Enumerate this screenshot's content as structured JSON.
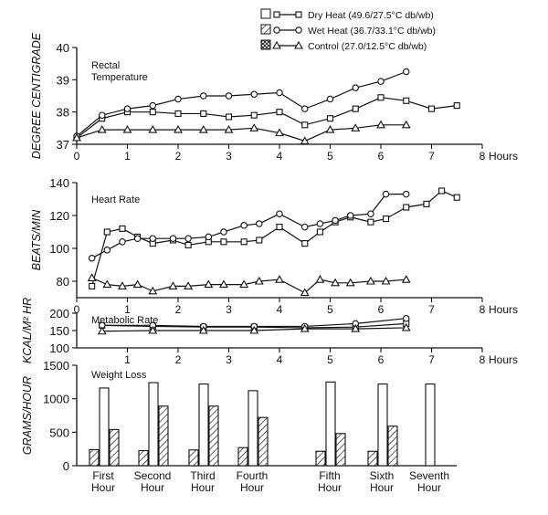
{
  "legend": {
    "entries": [
      {
        "label": "Dry Heat (49.6/27.5°C db/wb)",
        "marker": "square",
        "box": "open"
      },
      {
        "label": "Wet Heat (36.7/33.1°C db/wb)",
        "marker": "circle",
        "box": "hatched"
      },
      {
        "label": "Control (27.0/12.5°C db/wb)",
        "marker": "triangle",
        "box": "cross-hatched"
      }
    ]
  },
  "chart_data": [
    {
      "type": "line",
      "title": "Rectal Temperature",
      "ylabel": "DEGREE CENTIGRADE",
      "xlabel": "Hours",
      "xlim": [
        0,
        8
      ],
      "ylim": [
        37,
        40
      ],
      "xticks": [
        0,
        1,
        2,
        3,
        4,
        5,
        6,
        7,
        8
      ],
      "yticks": [
        37,
        38,
        39,
        40
      ],
      "series": [
        {
          "name": "Dry Heat",
          "marker": "square",
          "x": [
            0,
            0.5,
            1,
            1.5,
            2,
            2.5,
            3,
            3.5,
            4,
            4.5,
            5,
            5.5,
            6,
            6.5,
            7,
            7.5
          ],
          "y": [
            37.2,
            37.8,
            38.0,
            38.0,
            37.95,
            37.95,
            37.85,
            37.9,
            38.0,
            37.6,
            37.8,
            38.1,
            38.45,
            38.35,
            38.1,
            38.2
          ]
        },
        {
          "name": "Wet Heat",
          "marker": "circle",
          "x": [
            0,
            0.5,
            1,
            1.5,
            2,
            2.5,
            3,
            3.5,
            4,
            4.5,
            5,
            5.5,
            6,
            6.5
          ],
          "y": [
            37.25,
            37.9,
            38.1,
            38.2,
            38.4,
            38.5,
            38.5,
            38.55,
            38.6,
            38.1,
            38.4,
            38.75,
            38.95,
            39.25
          ]
        },
        {
          "name": "Control",
          "marker": "triangle",
          "x": [
            0,
            0.5,
            1,
            1.5,
            2,
            2.5,
            3,
            3.5,
            4,
            4.5,
            5,
            5.5,
            6,
            6.5
          ],
          "y": [
            37.2,
            37.45,
            37.45,
            37.45,
            37.45,
            37.45,
            37.45,
            37.5,
            37.35,
            37.1,
            37.45,
            37.5,
            37.6,
            37.6
          ]
        }
      ]
    },
    {
      "type": "line",
      "title": "Heart Rate",
      "ylabel": "BEATS/MIN",
      "xlabel": "Hours",
      "xlim": [
        0,
        8
      ],
      "ylim": [
        70,
        140
      ],
      "xticks": [
        0,
        1,
        2,
        3,
        4,
        5,
        6,
        7,
        8
      ],
      "yticks": [
        80,
        100,
        120,
        140
      ],
      "series": [
        {
          "name": "Dry Heat",
          "marker": "square",
          "x": [
            0.3,
            0.6,
            0.9,
            1.2,
            1.5,
            1.9,
            2.2,
            2.6,
            2.9,
            3.3,
            3.6,
            4.0,
            4.5,
            4.8,
            5.1,
            5.4,
            5.8,
            6.1,
            6.5,
            6.9,
            7.2,
            7.5
          ],
          "y": [
            77,
            110,
            112,
            107,
            103,
            105,
            102,
            104,
            104,
            104,
            105,
            113,
            103,
            110,
            116,
            119,
            116,
            118,
            125,
            127,
            135,
            131
          ]
        },
        {
          "name": "Wet Heat",
          "marker": "circle",
          "x": [
            0.3,
            0.6,
            0.9,
            1.2,
            1.5,
            1.9,
            2.2,
            2.6,
            2.9,
            3.3,
            3.6,
            4.0,
            4.5,
            4.8,
            5.1,
            5.4,
            5.8,
            6.1,
            6.5
          ],
          "y": [
            94,
            99,
            104,
            106,
            106,
            106,
            106,
            107,
            110,
            114,
            115,
            121,
            113,
            115,
            117,
            120,
            121,
            133,
            133
          ]
        },
        {
          "name": "Control",
          "marker": "triangle",
          "x": [
            0.3,
            0.6,
            0.9,
            1.2,
            1.5,
            1.9,
            2.2,
            2.6,
            2.9,
            3.3,
            3.6,
            4.0,
            4.5,
            4.8,
            5.1,
            5.4,
            5.8,
            6.1,
            6.5
          ],
          "y": [
            82,
            78,
            77,
            78,
            74,
            77,
            77,
            78,
            78,
            78,
            80,
            81,
            73,
            81,
            79,
            79,
            80,
            80,
            81
          ]
        }
      ]
    },
    {
      "type": "line",
      "title": "Metabolic Rate",
      "ylabel": "KCAL/M² HR",
      "xlabel": "Hours",
      "xlim": [
        0,
        8
      ],
      "ylim": [
        100,
        200
      ],
      "xticks": [
        1,
        2,
        3,
        4,
        5,
        6,
        7,
        8
      ],
      "yticks": [
        100,
        150,
        200
      ],
      "series": [
        {
          "name": "Dry Heat",
          "marker": "square",
          "x": [
            0.5,
            1.5,
            2.5,
            3.5,
            4.5,
            5.5,
            6.5
          ],
          "y": [
            165,
            162,
            160,
            160,
            158,
            160,
            170
          ]
        },
        {
          "name": "Wet Heat",
          "marker": "circle",
          "x": [
            0.5,
            1.5,
            2.5,
            3.5,
            4.5,
            5.5,
            6.5
          ],
          "y": [
            165,
            165,
            162,
            162,
            162,
            170,
            185
          ]
        },
        {
          "name": "Control",
          "marker": "triangle",
          "x": [
            0.5,
            1.5,
            2.5,
            3.5,
            4.5,
            5.5,
            6.5
          ],
          "y": [
            148,
            150,
            150,
            150,
            155,
            155,
            158
          ]
        }
      ]
    },
    {
      "type": "bar",
      "title": "Weight Loss",
      "ylabel": "GRAMS/HOUR",
      "categories": [
        "First Hour",
        "Second Hour",
        "Third Hour",
        "Fourth Hour",
        "Fifth Hour",
        "Sixth Hour",
        "Seventh Hour"
      ],
      "ylim": [
        0,
        1500
      ],
      "yticks": [
        0,
        500,
        1000,
        1500
      ],
      "series": [
        {
          "name": "Control",
          "fill": "hatched",
          "values": [
            240,
            225,
            235,
            270,
            215,
            215,
            null
          ]
        },
        {
          "name": "Dry Heat",
          "fill": "open",
          "values": [
            1160,
            1240,
            1220,
            1120,
            1250,
            1220,
            1220
          ]
        },
        {
          "name": "Wet Heat",
          "fill": "hatched",
          "values": [
            540,
            890,
            890,
            720,
            480,
            590,
            null
          ]
        }
      ]
    }
  ]
}
